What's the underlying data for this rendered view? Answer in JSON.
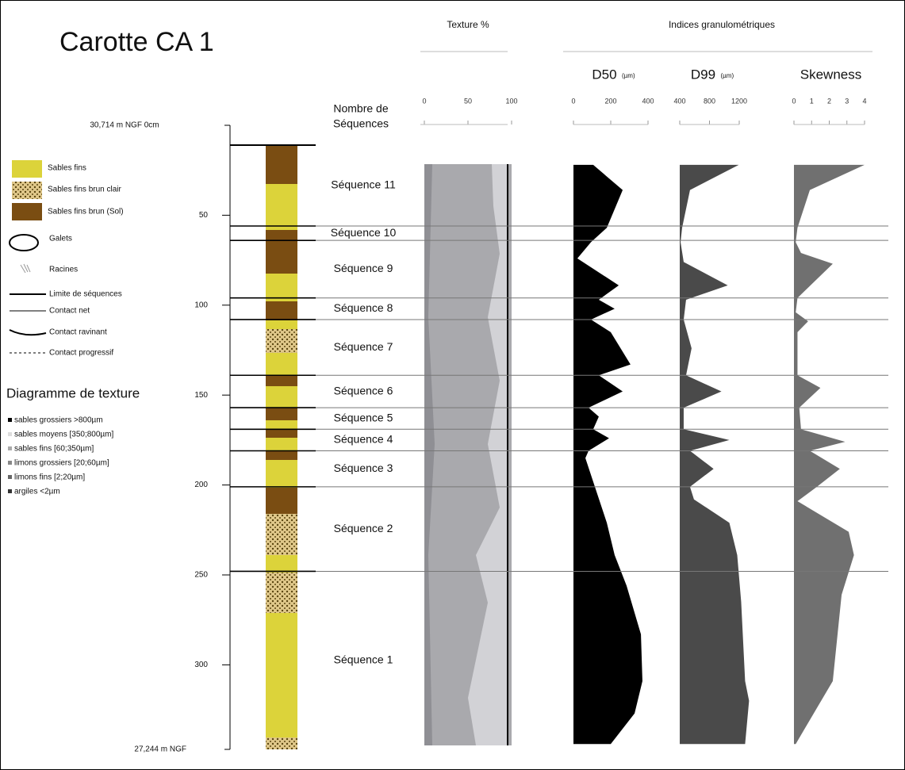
{
  "title": "Carotte CA 1",
  "legend": {
    "items": [
      "Sables fins",
      "Sables fins brun clair",
      "Sables fins brun (Sol)",
      "Galets",
      "Racines",
      "Limite de séquences",
      "Contact net",
      "Contact ravinant",
      "Contact progressif"
    ],
    "texture_title": "Diagramme de texture",
    "texture_items": [
      "sables grossiers >800µm",
      "sables moyens [350;800µm]",
      "sables fins [60;350µm]",
      "limons grossiers [20;60µm]",
      "limons fins [2;20µm]",
      "argiles <2µm"
    ]
  },
  "depth_axis": {
    "top_label": "30,714 m NGF 0cm",
    "bottom_label": "27,244 m NGF",
    "lim": [
      0,
      347
    ],
    "ticks": [
      50,
      100,
      150,
      200,
      250,
      300
    ]
  },
  "sequences": {
    "heading": [
      "Nombre de",
      "Séquences"
    ],
    "top": 11,
    "labels": [
      "Séquence 11",
      "Séquence 10",
      "Séquence 9",
      "Séquence 8",
      "Séquence 7",
      "Séquence 6",
      "Séquence 5",
      "Séquence 4",
      "Séquence 3",
      "Séquence 2",
      "Séquence 1"
    ],
    "boundaries": [
      56,
      64,
      96,
      108,
      139,
      157,
      169,
      181,
      201,
      248
    ]
  },
  "texture": {
    "title": "Texture %",
    "lim": [
      0,
      100
    ],
    "ticks": [
      0,
      50,
      100
    ]
  },
  "indices_title": "Indices granulométriques",
  "profiles": [
    {
      "title": "D50",
      "unit": "(µm)",
      "color": "#000000",
      "lim": [
        0,
        400
      ],
      "ticks": [
        0,
        200,
        400
      ],
      "depth": [
        22,
        36,
        57,
        65,
        74,
        89,
        97,
        102,
        108,
        115,
        133,
        139,
        148,
        157,
        162,
        169,
        174,
        181,
        185,
        201,
        221,
        239,
        256,
        283,
        309,
        327,
        344
      ],
      "values": [
        106,
        264,
        179,
        94,
        21,
        243,
        136,
        221,
        94,
        200,
        306,
        136,
        264,
        81,
        136,
        106,
        191,
        81,
        64,
        115,
        179,
        221,
        285,
        362,
        370,
        328,
        200
      ]
    },
    {
      "title": "D99",
      "unit": "(µm)",
      "color": "#4a4a4a",
      "lim": [
        400,
        1200
      ],
      "ticks": [
        400,
        800,
        1200
      ],
      "depth": [
        22,
        36,
        57,
        65,
        76,
        89,
        97,
        108,
        124,
        139,
        148,
        157,
        169,
        175,
        181,
        191,
        201,
        208,
        221,
        239,
        265,
        309,
        320,
        344
      ],
      "values": [
        1194,
        538,
        432,
        411,
        453,
        1046,
        485,
        453,
        559,
        485,
        961,
        453,
        453,
        1067,
        538,
        855,
        538,
        591,
        1067,
        1173,
        1226,
        1279,
        1332,
        1279
      ]
    },
    {
      "title": "Skewness",
      "color": "#707070",
      "lim": [
        0,
        4
      ],
      "ticks": [
        0,
        1,
        2,
        3,
        4
      ],
      "depth": [
        22,
        36,
        57,
        65,
        71,
        77,
        96,
        104,
        109,
        115,
        139,
        146,
        157,
        169,
        176,
        181,
        191,
        201,
        209,
        226,
        239,
        261,
        309,
        344
      ],
      "values": [
        4.0,
        0.9,
        0.2,
        0.1,
        0.4,
        2.2,
        0.2,
        0.1,
        0.8,
        0.2,
        0.2,
        1.5,
        0.3,
        0.4,
        2.9,
        0.9,
        2.6,
        1.3,
        0.2,
        3.1,
        3.4,
        2.7,
        2.2,
        0.1
      ]
    }
  ]
}
